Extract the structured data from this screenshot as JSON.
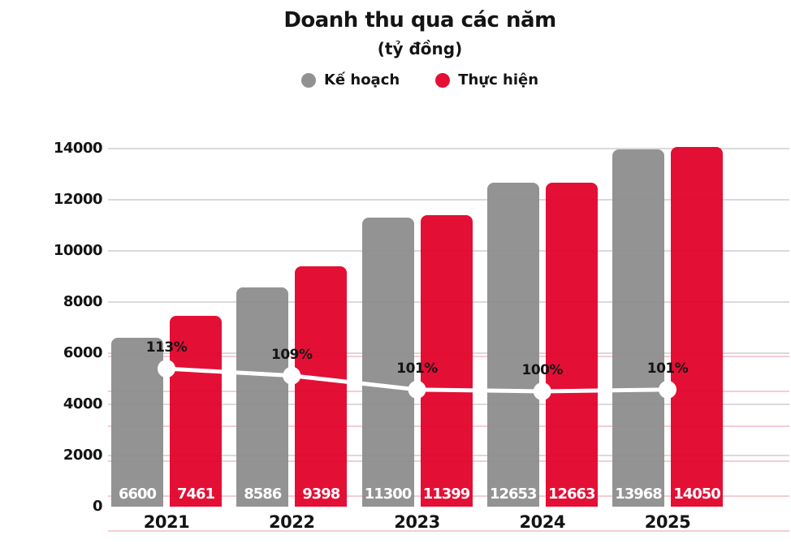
{
  "chart_data": {
    "type": "bar",
    "title": "Doanh thu qua các năm",
    "subtitle": "(tỷ đồng)",
    "categories": [
      "2021",
      "2022",
      "2023",
      "2024",
      "2025"
    ],
    "series": [
      {
        "name": "Kế hoạch",
        "type": "bar",
        "color": "#8c8c8c",
        "values": [
          6600,
          8586,
          11300,
          12653,
          13968
        ]
      },
      {
        "name": "Thực hiện",
        "type": "bar",
        "color": "#e20028",
        "values": [
          7461,
          9398,
          11399,
          12663,
          14050
        ]
      }
    ],
    "completion_line": {
      "type": "line",
      "color": "#ffffff",
      "values_percent": [
        113,
        109,
        101,
        100,
        101
      ],
      "labels": [
        "113%",
        "109%",
        "101%",
        "100%",
        "101%"
      ]
    },
    "xlabel": "",
    "ylabel": "",
    "ylim": [
      0,
      14000
    ],
    "yticks": [
      0,
      2000,
      4000,
      6000,
      8000,
      10000,
      12000,
      14000
    ],
    "secondary_gridlines_percent": [
      20,
      40,
      60,
      80,
      100,
      120
    ],
    "grid": true,
    "legend_position": "top"
  },
  "legend": {
    "items": [
      {
        "label": "Kế hoạch",
        "color": "#919191"
      },
      {
        "label": "Thực hiện",
        "color": "#e50f35"
      }
    ]
  },
  "colors": {
    "plan_bar": "#8c8c8c",
    "actual_bar": "#e20028",
    "major_gridline": "#dadada",
    "secondary_gridline": "#f6ccd3",
    "line": "#ffffff",
    "text": "#141414"
  }
}
